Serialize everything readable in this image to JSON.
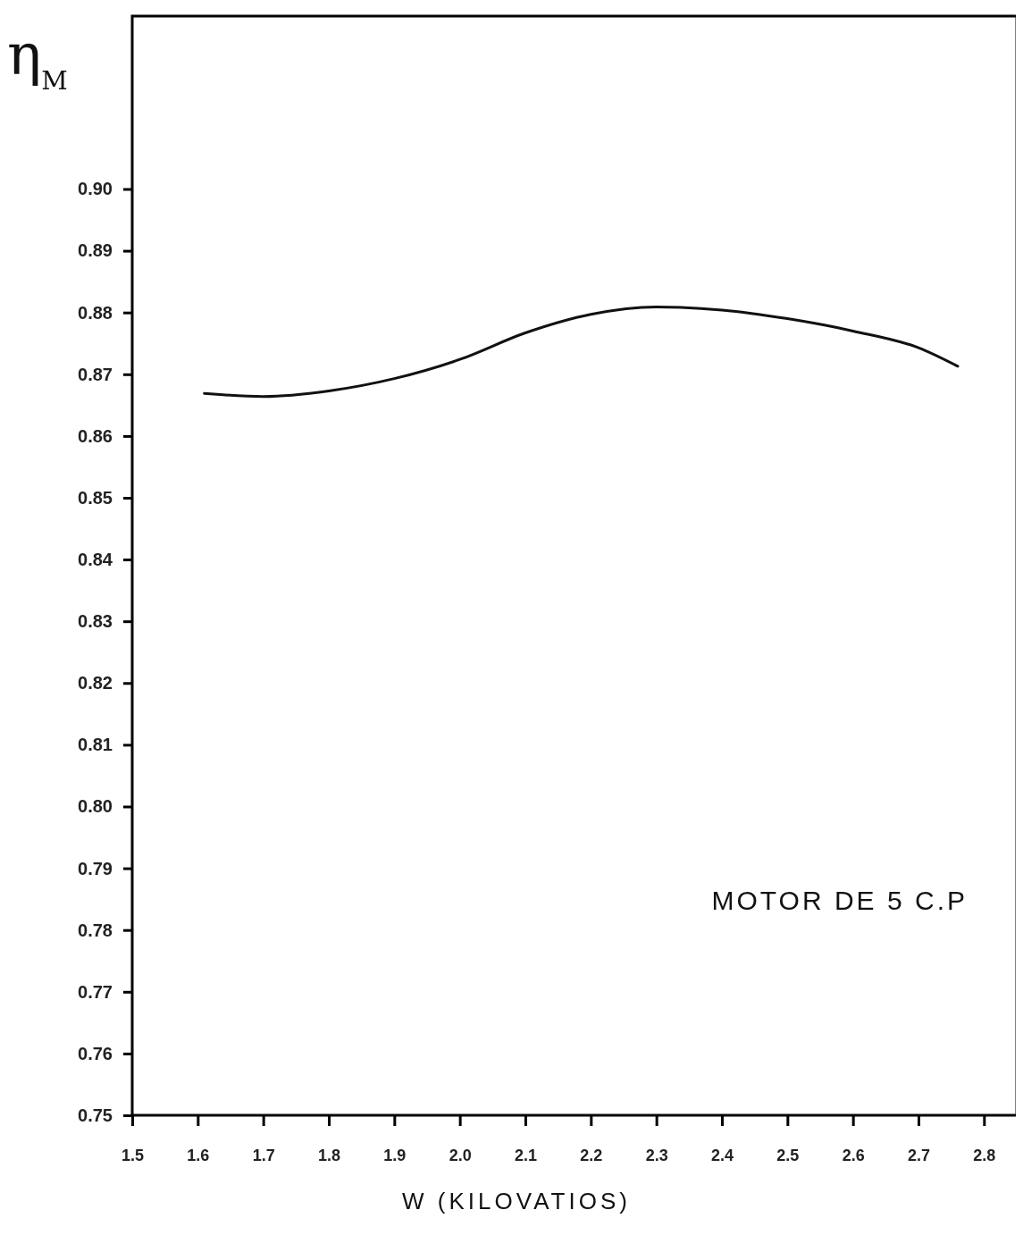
{
  "chart_data": {
    "type": "line",
    "xlabel": "W (KILOVATIOS)",
    "ylabel": "η$_{M}$",
    "annotations": [
      "MOTOR DE 5 C.P"
    ],
    "x": [
      1.61,
      1.7,
      1.8,
      1.9,
      2.0,
      2.1,
      2.2,
      2.3,
      2.4,
      2.5,
      2.6,
      2.7,
      2.76
    ],
    "series": [
      {
        "color": "#111111",
        "values": [
          0.8669,
          0.8664,
          0.8673,
          0.8693,
          0.8724,
          0.8767,
          0.8797,
          0.8809,
          0.8804,
          0.879,
          0.877,
          0.8743,
          0.8713
        ]
      }
    ],
    "xlim": [
      1.5,
      2.85
    ],
    "ylim": [
      0.75,
      0.928
    ],
    "xticks": [
      1.5,
      1.6,
      1.7,
      1.8,
      1.9,
      {
        "value": 2.0,
        "label": "2.0"
      },
      2.1,
      2.2,
      2.3,
      2.4,
      2.5,
      2.6,
      2.7,
      2.8
    ],
    "yticks": [
      {
        "value": 0.75,
        "label": "0.75"
      },
      {
        "value": 0.76,
        "label": "0.76"
      },
      {
        "value": 0.77,
        "label": "0.77"
      },
      {
        "value": 0.78,
        "label": "0.78"
      },
      {
        "value": 0.79,
        "label": "0.79"
      },
      {
        "value": 0.8,
        "label": "0.80"
      },
      {
        "value": 0.81,
        "label": "0.81"
      },
      {
        "value": 0.82,
        "label": "0.82"
      },
      {
        "value": 0.83,
        "label": "0.83"
      },
      {
        "value": 0.84,
        "label": "0.84"
      },
      {
        "value": 0.85,
        "label": "0.85"
      },
      {
        "value": 0.86,
        "label": "0.86"
      },
      {
        "value": 0.87,
        "label": "0.87"
      },
      {
        "value": 0.88,
        "label": "0.88"
      },
      {
        "value": 0.89,
        "label": "0.89"
      },
      {
        "value": 0.9,
        "label": "0.90"
      }
    ],
    "grid": false,
    "marker": "none",
    "line_style": "solid"
  }
}
